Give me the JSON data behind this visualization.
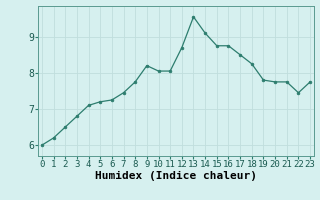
{
  "x": [
    0,
    1,
    2,
    3,
    4,
    5,
    6,
    7,
    8,
    9,
    10,
    11,
    12,
    13,
    14,
    15,
    16,
    17,
    18,
    19,
    20,
    21,
    22,
    23
  ],
  "y": [
    6.0,
    6.2,
    6.5,
    6.8,
    7.1,
    7.2,
    7.25,
    7.45,
    7.75,
    8.2,
    8.05,
    8.05,
    8.7,
    9.55,
    9.1,
    8.75,
    8.75,
    8.5,
    8.25,
    7.8,
    7.75,
    7.75,
    7.45,
    7.75
  ],
  "line_color": "#2d7d6e",
  "marker": "o",
  "marker_size": 2,
  "bg_color": "#d6f0ef",
  "grid_color": "#c0dedd",
  "xlabel": "Humidex (Indice chaleur)",
  "xlabel_fontsize": 8,
  "ytick_labels": [
    "6",
    "7",
    "8",
    "9"
  ],
  "ytick_vals": [
    6,
    7,
    8,
    9
  ],
  "xticks": [
    0,
    1,
    2,
    3,
    4,
    5,
    6,
    7,
    8,
    9,
    10,
    11,
    12,
    13,
    14,
    15,
    16,
    17,
    18,
    19,
    20,
    21,
    22,
    23
  ],
  "xlim": [
    -0.3,
    23.3
  ],
  "ylim": [
    5.7,
    9.85
  ],
  "tick_fontsize": 6.5
}
